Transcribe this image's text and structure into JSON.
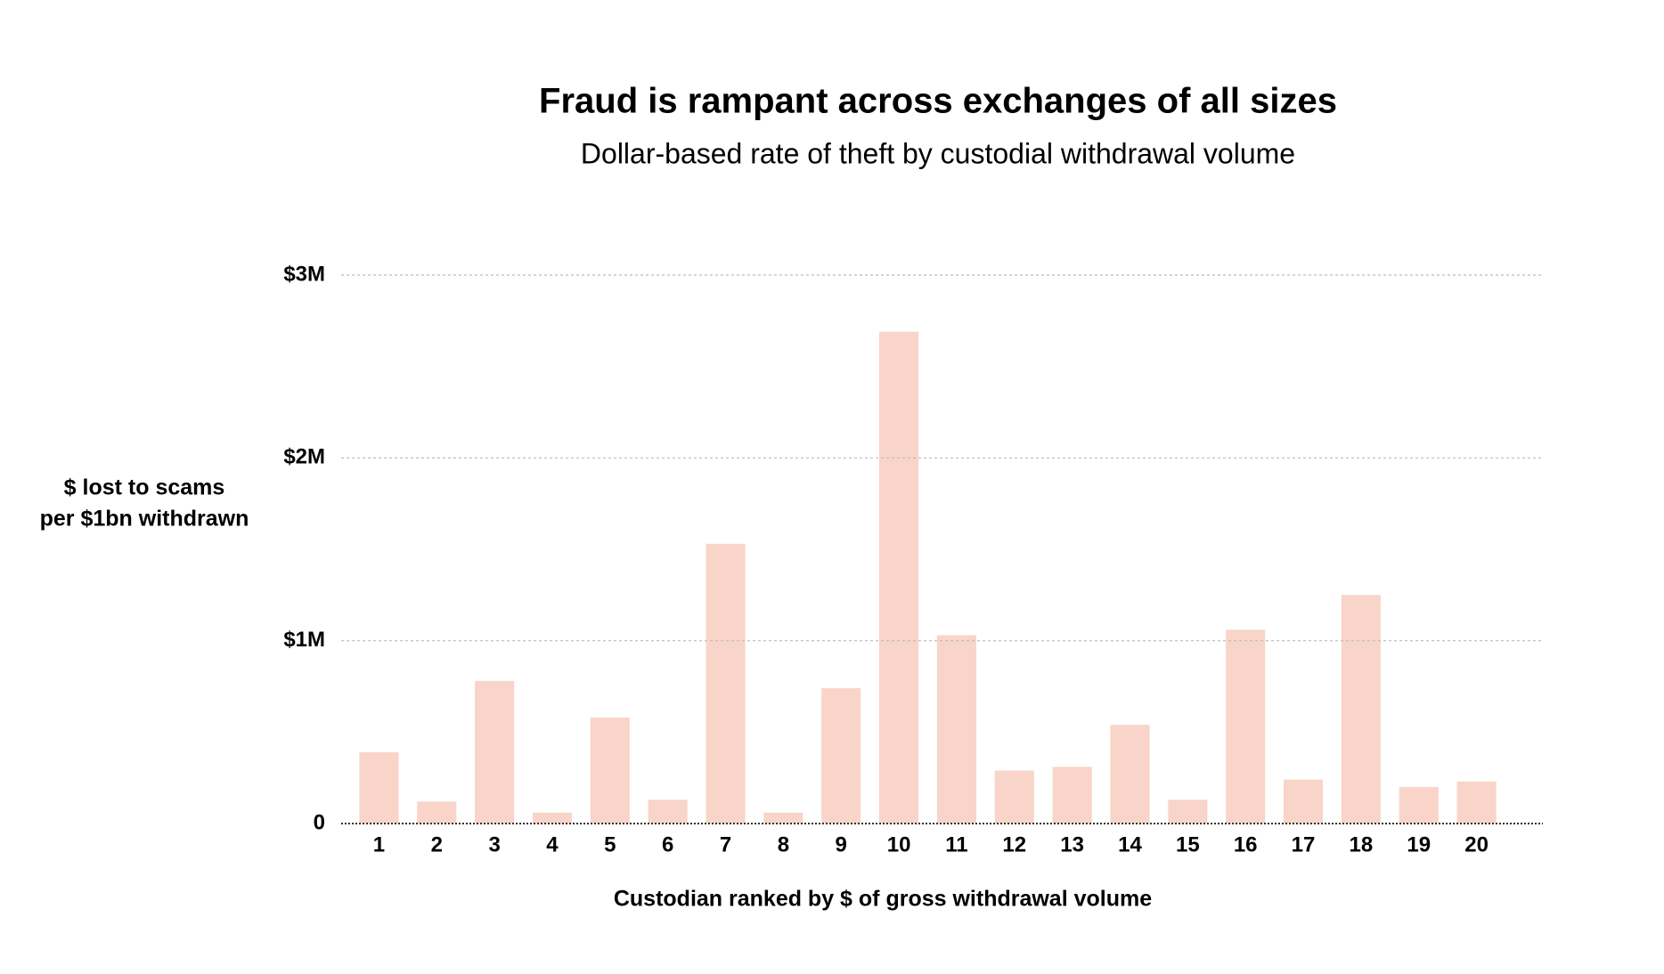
{
  "chart_data": {
    "type": "bar",
    "title": "Fraud is rampant across exchanges of all sizes",
    "subtitle": "Dollar-based rate of theft by custodial withdrawal volume",
    "y_label": [
      "$ lost to scams",
      "per $1bn withdrawn"
    ],
    "x_label": "Custodian ranked by $ of gross withdrawal volume",
    "categories": [
      "1",
      "2",
      "3",
      "4",
      "5",
      "6",
      "7",
      "8",
      "9",
      "10",
      "11",
      "12",
      "13",
      "14",
      "15",
      "16",
      "17",
      "18",
      "19",
      "20"
    ],
    "values": [
      390000,
      120000,
      780000,
      60000,
      580000,
      130000,
      1530000,
      60000,
      740000,
      2690000,
      1030000,
      290000,
      310000,
      540000,
      130000,
      1060000,
      240000,
      1250000,
      200000,
      230000
    ],
    "color": "#f8d5c8",
    "ylim": [
      0,
      3000000
    ],
    "yticks": [
      {
        "value": 0,
        "label": "0"
      },
      {
        "value": 1000000,
        "label": "$1M"
      },
      {
        "value": 2000000,
        "label": "$2M"
      },
      {
        "value": 3000000,
        "label": "$3M"
      }
    ],
    "grid": true
  }
}
